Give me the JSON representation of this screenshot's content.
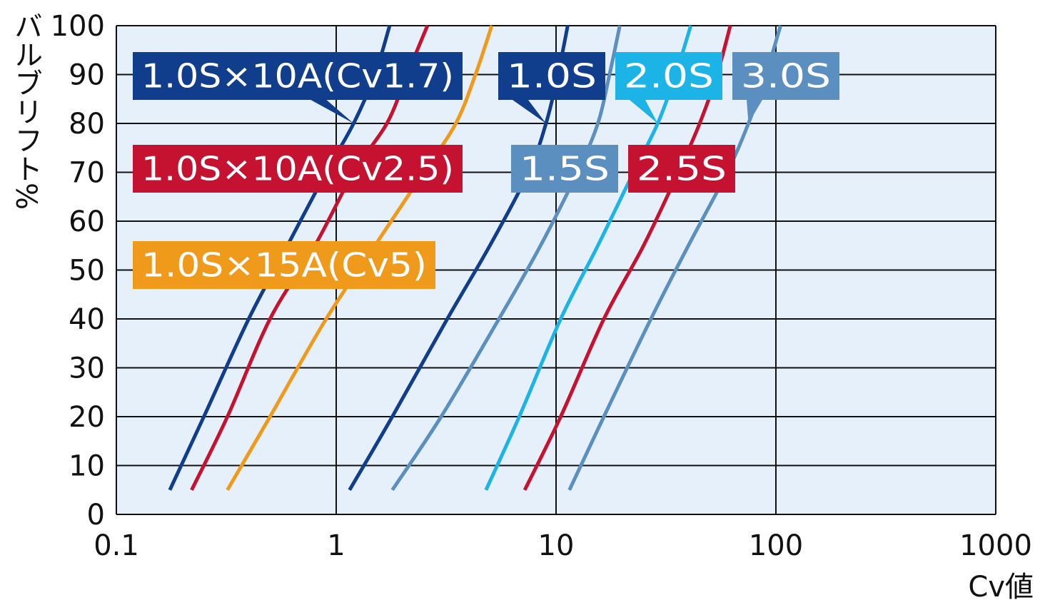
{
  "chart_data": {
    "type": "line",
    "title": "",
    "xlabel": "Cv値",
    "ylabel": "バルブリフト%",
    "xscale": "log",
    "xlim": [
      0.1,
      1000
    ],
    "ylim": [
      0,
      100
    ],
    "xticks": [
      "0.1",
      "1",
      "10",
      "100",
      "1000"
    ],
    "yticks": [
      "0",
      "10",
      "20",
      "30",
      "40",
      "50",
      "60",
      "70",
      "80",
      "90",
      "100"
    ],
    "grid": true,
    "series": [
      {
        "name": "1.0S×10A(Cv1.7)",
        "color": "#103d8c",
        "x": [
          0.175,
          0.25,
          0.4,
          0.6,
          0.9,
          1.2,
          1.5,
          1.75
        ],
        "y": [
          5,
          20,
          40,
          55,
          70,
          80,
          90,
          100
        ]
      },
      {
        "name": "1.0S×10A(Cv2.5)",
        "color": "#c41230",
        "x": [
          0.22,
          0.32,
          0.5,
          0.8,
          1.2,
          1.7,
          2.1,
          2.6
        ],
        "y": [
          5,
          20,
          40,
          55,
          70,
          80,
          90,
          100
        ]
      },
      {
        "name": "1.0S×15A(Cv5)",
        "color": "#f09a1c",
        "x": [
          0.32,
          0.5,
          0.9,
          1.5,
          2.5,
          3.5,
          4.3,
          5.1
        ],
        "y": [
          5,
          20,
          40,
          55,
          70,
          80,
          90,
          100
        ]
      },
      {
        "name": "1.0S",
        "color": "#103d8c",
        "x": [
          1.15,
          1.8,
          3.2,
          5.0,
          7.5,
          9.0,
          10.2,
          11.3
        ],
        "y": [
          5,
          20,
          40,
          55,
          70,
          80,
          90,
          100
        ]
      },
      {
        "name": "1.5S",
        "color": "#5b8fc0",
        "x": [
          1.8,
          3.0,
          5.5,
          8.5,
          12.5,
          15.5,
          17.5,
          19.5
        ],
        "y": [
          5,
          20,
          40,
          55,
          70,
          80,
          90,
          100
        ]
      },
      {
        "name": "2.0S",
        "color": "#1cb4e6",
        "x": [
          4.8,
          6.8,
          10.5,
          15.5,
          22.5,
          29,
          35,
          41
        ],
        "y": [
          5,
          20,
          40,
          55,
          70,
          80,
          90,
          100
        ]
      },
      {
        "name": "2.5S",
        "color": "#c41230",
        "x": [
          7.2,
          10.5,
          16.5,
          25,
          36,
          45,
          54,
          62
        ],
        "y": [
          5,
          20,
          40,
          55,
          70,
          80,
          90,
          100
        ]
      },
      {
        "name": "3.0S",
        "color": "#5b8fc0",
        "x": [
          11.5,
          16.5,
          27,
          40,
          60,
          75,
          90,
          105
        ],
        "y": [
          5,
          20,
          40,
          55,
          70,
          80,
          90,
          100
        ]
      }
    ],
    "labels": [
      {
        "text": "1.0S×10A(Cv1.7)",
        "bg": "#103d8c",
        "series": 0
      },
      {
        "text": "1.0S×10A(Cv2.5)",
        "bg": "#c41230",
        "series": 1
      },
      {
        "text": "1.0S×15A(Cv5)",
        "bg": "#f09a1c",
        "series": 2
      },
      {
        "text": "1.0S",
        "bg": "#103d8c",
        "series": 3
      },
      {
        "text": "1.5S",
        "bg": "#5b8fc0",
        "series": 4
      },
      {
        "text": "2.0S",
        "bg": "#1cb4e6",
        "series": 5
      },
      {
        "text": "2.5S",
        "bg": "#c41230",
        "series": 6
      },
      {
        "text": "3.0S",
        "bg": "#5b8fc0",
        "series": 7
      }
    ],
    "plot_background": "#e6f0fa"
  }
}
